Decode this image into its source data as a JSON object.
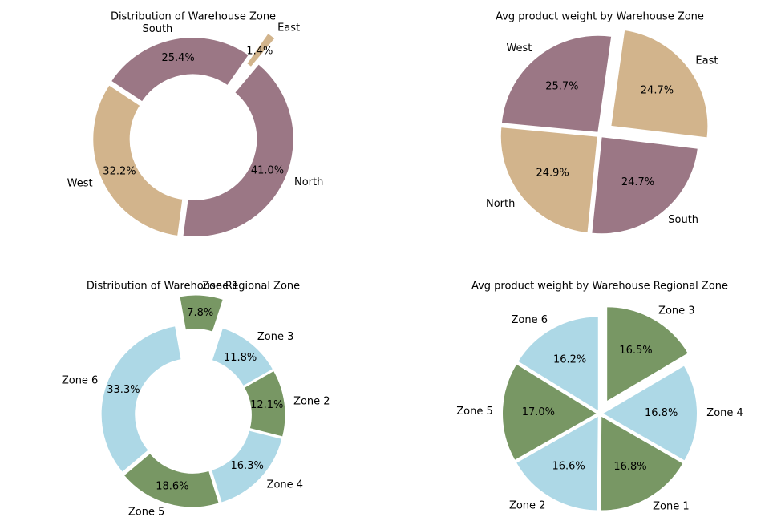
{
  "chart_data": [
    {
      "type": "pie",
      "variant": "donut",
      "title": "Distribution of Warehouse Zone",
      "categories": [
        "East",
        "South",
        "West",
        "North"
      ],
      "values": [
        1.4,
        25.4,
        32.2,
        41.0
      ],
      "percent_labels": [
        "1.4%",
        "25.4%",
        "32.2%",
        "41.0%"
      ],
      "colors": [
        "#d2b48c",
        "#9b7785",
        "#d2b48c",
        "#9b7785"
      ],
      "exploded": [
        "East"
      ]
    },
    {
      "type": "pie",
      "variant": "pie",
      "title": "Avg product weight by Warehouse Zone",
      "categories": [
        "West",
        "North",
        "South",
        "East"
      ],
      "values": [
        25.7,
        24.9,
        24.7,
        24.7
      ],
      "percent_labels": [
        "25.7%",
        "24.9%",
        "24.7%",
        "24.7%"
      ],
      "colors": [
        "#9b7785",
        "#d2b48c",
        "#9b7785",
        "#d2b48c"
      ],
      "exploded": [
        "East"
      ]
    },
    {
      "type": "pie",
      "variant": "donut",
      "title": "Distribution of Warehouse Regional Zone",
      "categories": [
        "Zone 1",
        "Zone 6",
        "Zone 5",
        "Zone 4",
        "Zone 2",
        "Zone 3"
      ],
      "values": [
        7.8,
        33.3,
        18.6,
        16.3,
        12.1,
        11.8
      ],
      "percent_labels": [
        "7.8%",
        "33.3%",
        "18.6%",
        "16.3%",
        "12.1%",
        "11.8%"
      ],
      "colors": [
        "#789764",
        "#add8e6",
        "#789764",
        "#add8e6",
        "#789764",
        "#add8e6"
      ],
      "exploded": [
        "Zone 1"
      ]
    },
    {
      "type": "pie",
      "variant": "pie",
      "title": "Avg product weight by Warehouse Regional Zone",
      "categories": [
        "Zone 6",
        "Zone 5",
        "Zone 2",
        "Zone 1",
        "Zone 4",
        "Zone 3"
      ],
      "values": [
        16.2,
        17.0,
        16.6,
        16.8,
        16.8,
        16.5
      ],
      "percent_labels": [
        "16.2%",
        "17.0%",
        "16.6%",
        "16.8%",
        "16.8%",
        "16.5%"
      ],
      "colors": [
        "#add8e6",
        "#789764",
        "#add8e6",
        "#789764",
        "#add8e6",
        "#789764"
      ],
      "exploded": [
        "Zone 3"
      ]
    }
  ]
}
